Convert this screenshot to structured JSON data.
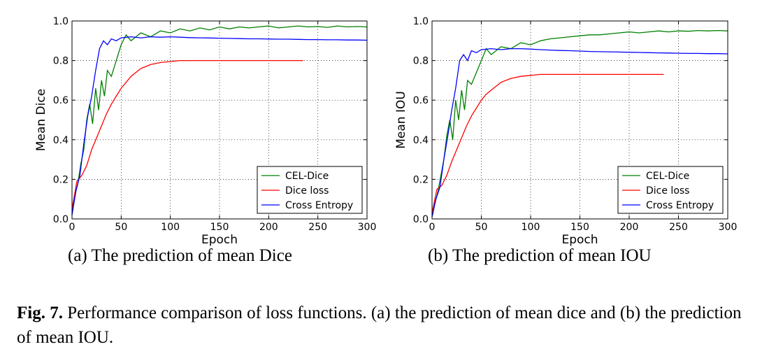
{
  "colors": {
    "cel_dice": "#008000",
    "dice_loss": "#ff0000",
    "cross_entropy": "#0000ff"
  },
  "subcaptions": {
    "a": "(a) The prediction of mean Dice",
    "b": "(b) The prediction of mean IOU"
  },
  "caption": {
    "label": "Fig. 7.",
    "text": " Performance comparison of loss functions. (a) the prediction of mean dice and (b) the prediction of mean IOU."
  },
  "chart_data": [
    {
      "type": "line",
      "xlabel": "Epoch",
      "ylabel": "Mean Dice",
      "xlim": [
        0,
        300
      ],
      "ylim": [
        0,
        1.0
      ],
      "xticks": [
        "0",
        "50",
        "100",
        "150",
        "200",
        "250",
        "300"
      ],
      "yticks": [
        "0.0",
        "0.2",
        "0.4",
        "0.6",
        "0.8",
        "1.0"
      ],
      "grid": true,
      "legend": "bottom-right",
      "series": [
        {
          "name": "CEL-Dice",
          "color": "#008000",
          "x": [
            0,
            3,
            6,
            9,
            12,
            15,
            18,
            21,
            24,
            27,
            30,
            33,
            36,
            40,
            45,
            50,
            55,
            60,
            65,
            70,
            80,
            90,
            100,
            110,
            120,
            130,
            140,
            150,
            160,
            170,
            180,
            190,
            200,
            210,
            220,
            230,
            240,
            250,
            260,
            270,
            280,
            290,
            300
          ],
          "y": [
            0.02,
            0.12,
            0.18,
            0.28,
            0.35,
            0.5,
            0.58,
            0.48,
            0.66,
            0.55,
            0.7,
            0.62,
            0.75,
            0.72,
            0.8,
            0.88,
            0.93,
            0.9,
            0.92,
            0.94,
            0.92,
            0.95,
            0.94,
            0.96,
            0.95,
            0.965,
            0.955,
            0.97,
            0.96,
            0.97,
            0.965,
            0.97,
            0.975,
            0.965,
            0.97,
            0.975,
            0.97,
            0.972,
            0.968,
            0.975,
            0.97,
            0.972,
            0.97
          ]
        },
        {
          "name": "Dice loss",
          "color": "#ff0000",
          "x": [
            0,
            5,
            10,
            15,
            20,
            25,
            30,
            35,
            40,
            45,
            50,
            55,
            60,
            65,
            70,
            75,
            80,
            90,
            100,
            110,
            120,
            130,
            140,
            150,
            160,
            170,
            180,
            190,
            200,
            210,
            220,
            230,
            235
          ],
          "y": [
            0.05,
            0.19,
            0.22,
            0.27,
            0.35,
            0.41,
            0.47,
            0.53,
            0.58,
            0.62,
            0.66,
            0.69,
            0.72,
            0.74,
            0.76,
            0.77,
            0.78,
            0.79,
            0.795,
            0.8,
            0.8,
            0.8,
            0.8,
            0.8,
            0.8,
            0.8,
            0.8,
            0.8,
            0.8,
            0.8,
            0.8,
            0.8,
            0.8
          ]
        },
        {
          "name": "Cross Entropy",
          "color": "#0000ff",
          "x": [
            0,
            4,
            8,
            12,
            16,
            20,
            24,
            28,
            32,
            36,
            40,
            45,
            50,
            60,
            70,
            80,
            90,
            100,
            110,
            120,
            130,
            140,
            150,
            160,
            170,
            180,
            190,
            200,
            210,
            220,
            230,
            240,
            250,
            260,
            270,
            280,
            290,
            300
          ],
          "y": [
            0.02,
            0.14,
            0.22,
            0.38,
            0.52,
            0.62,
            0.75,
            0.86,
            0.9,
            0.88,
            0.91,
            0.9,
            0.915,
            0.92,
            0.915,
            0.92,
            0.918,
            0.92,
            0.918,
            0.916,
            0.915,
            0.914,
            0.913,
            0.912,
            0.911,
            0.91,
            0.91,
            0.909,
            0.908,
            0.908,
            0.907,
            0.906,
            0.906,
            0.905,
            0.905,
            0.904,
            0.904,
            0.903
          ]
        }
      ]
    },
    {
      "type": "line",
      "xlabel": "Epoch",
      "ylabel": "Mean IOU",
      "xlim": [
        0,
        300
      ],
      "ylim": [
        0,
        1.0
      ],
      "xticks": [
        "0",
        "50",
        "100",
        "150",
        "200",
        "250",
        "300"
      ],
      "yticks": [
        "0.0",
        "0.2",
        "0.4",
        "0.6",
        "0.8",
        "1.0"
      ],
      "grid": true,
      "legend": "bottom-right",
      "series": [
        {
          "name": "CEL-Dice",
          "color": "#008000",
          "x": [
            0,
            3,
            6,
            9,
            12,
            15,
            18,
            21,
            24,
            27,
            30,
            33,
            36,
            40,
            45,
            50,
            55,
            60,
            65,
            70,
            80,
            90,
            100,
            110,
            120,
            130,
            140,
            150,
            160,
            170,
            180,
            190,
            200,
            210,
            220,
            230,
            240,
            250,
            260,
            270,
            280,
            290,
            300
          ],
          "y": [
            0.01,
            0.08,
            0.14,
            0.22,
            0.3,
            0.42,
            0.5,
            0.4,
            0.6,
            0.5,
            0.65,
            0.55,
            0.7,
            0.68,
            0.74,
            0.8,
            0.86,
            0.83,
            0.85,
            0.87,
            0.86,
            0.89,
            0.88,
            0.9,
            0.91,
            0.915,
            0.92,
            0.925,
            0.93,
            0.93,
            0.935,
            0.94,
            0.945,
            0.94,
            0.945,
            0.95,
            0.945,
            0.95,
            0.948,
            0.952,
            0.95,
            0.952,
            0.95
          ]
        },
        {
          "name": "Dice loss",
          "color": "#ff0000",
          "x": [
            0,
            5,
            10,
            15,
            20,
            25,
            30,
            35,
            40,
            45,
            50,
            55,
            60,
            65,
            70,
            75,
            80,
            90,
            100,
            110,
            120,
            130,
            140,
            150,
            160,
            170,
            180,
            190,
            200,
            210,
            220,
            230,
            235
          ],
          "y": [
            0.03,
            0.15,
            0.17,
            0.22,
            0.29,
            0.35,
            0.41,
            0.47,
            0.52,
            0.56,
            0.6,
            0.63,
            0.65,
            0.67,
            0.69,
            0.7,
            0.71,
            0.72,
            0.725,
            0.73,
            0.73,
            0.73,
            0.73,
            0.73,
            0.73,
            0.73,
            0.73,
            0.73,
            0.73,
            0.73,
            0.73,
            0.73,
            0.73
          ]
        },
        {
          "name": "Cross Entropy",
          "color": "#0000ff",
          "x": [
            0,
            4,
            8,
            12,
            16,
            20,
            24,
            28,
            32,
            36,
            40,
            45,
            50,
            60,
            70,
            80,
            90,
            100,
            110,
            120,
            130,
            140,
            150,
            160,
            170,
            180,
            190,
            200,
            210,
            220,
            230,
            240,
            250,
            260,
            270,
            280,
            290,
            300
          ],
          "y": [
            0.01,
            0.1,
            0.16,
            0.3,
            0.42,
            0.55,
            0.66,
            0.8,
            0.83,
            0.8,
            0.85,
            0.84,
            0.855,
            0.86,
            0.855,
            0.86,
            0.86,
            0.858,
            0.855,
            0.853,
            0.851,
            0.85,
            0.848,
            0.846,
            0.845,
            0.844,
            0.843,
            0.842,
            0.841,
            0.84,
            0.839,
            0.838,
            0.837,
            0.836,
            0.836,
            0.835,
            0.835,
            0.834
          ]
        }
      ]
    }
  ]
}
